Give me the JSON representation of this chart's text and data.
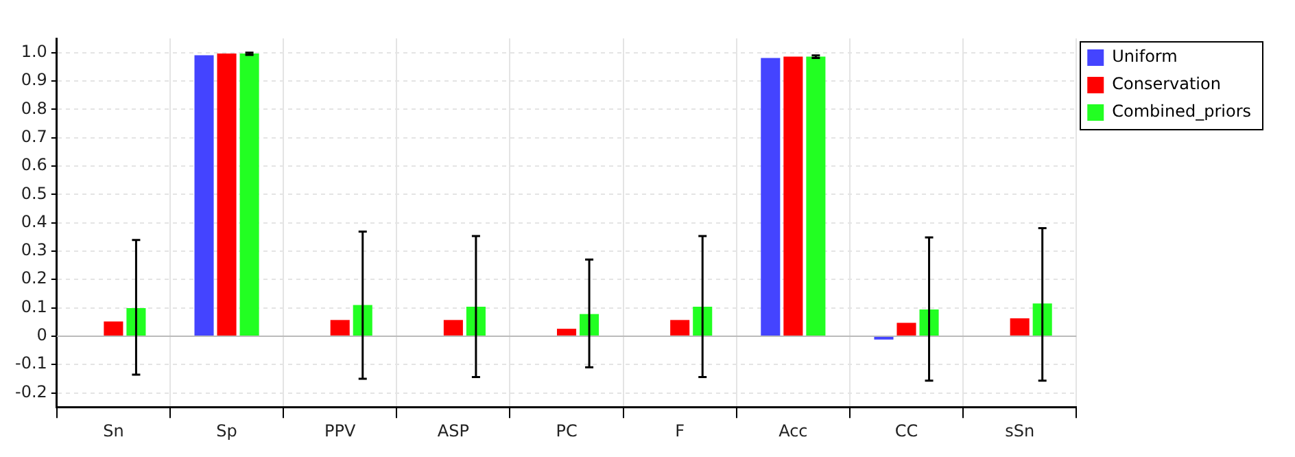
{
  "chart_data": {
    "type": "bar",
    "categories": [
      "Sn",
      "Sp",
      "PPV",
      "ASP",
      "PC",
      "F",
      "Acc",
      "CC",
      "sSn"
    ],
    "series": [
      {
        "name": "Uniform",
        "color": "#4444ff",
        "values": [
          0,
          0.991,
          0,
          0,
          0,
          0,
          0.981,
          -0.012,
          0
        ]
      },
      {
        "name": "Conservation",
        "color": "#ff0000",
        "values": [
          0.052,
          0.997,
          0.057,
          0.057,
          0.026,
          0.057,
          0.986,
          0.047,
          0.063
        ]
      },
      {
        "name": "Combined_priors",
        "color": "#22ff22",
        "values": [
          0.099,
          0.997,
          0.11,
          0.104,
          0.078,
          0.104,
          0.986,
          0.094,
          0.115
        ],
        "errors": [
          [
            -0.136,
            0.339
          ],
          [
            0.992,
            1.0
          ],
          [
            -0.15,
            0.369
          ],
          [
            -0.144,
            0.353
          ],
          [
            -0.11,
            0.27
          ],
          [
            -0.144,
            0.353
          ],
          [
            0.981,
            0.99
          ],
          [
            -0.157,
            0.348
          ],
          [
            -0.157,
            0.381
          ]
        ]
      }
    ],
    "ylim": [
      -0.25,
      1.05
    ],
    "yticks": [
      -0.2,
      -0.1,
      0,
      0.1,
      0.2,
      0.3,
      0.4,
      0.5,
      0.6,
      0.7,
      0.8,
      0.9,
      {
        "value": 1,
        "label": "1.0"
      }
    ],
    "ref_lines": [
      {
        "axis": "y",
        "value": 0,
        "color": "#bbbbbb"
      }
    ],
    "grid": true,
    "legend": "top right"
  }
}
